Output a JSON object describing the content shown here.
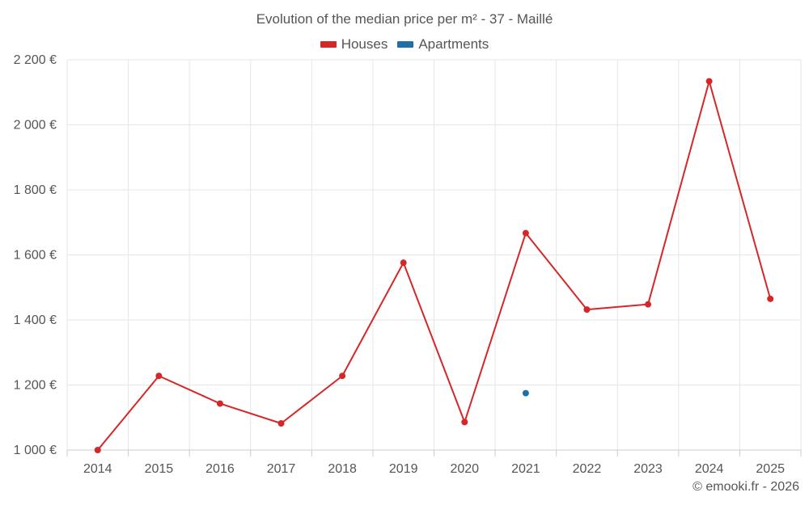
{
  "chart_data": {
    "type": "line",
    "title": "Evolution of the median price per m² - 37 - Maillé",
    "categories": [
      "2014",
      "2015",
      "2016",
      "2017",
      "2018",
      "2019",
      "2020",
      "2021",
      "2022",
      "2023",
      "2024",
      "2025"
    ],
    "series": [
      {
        "name": "Houses",
        "color": "#d62728",
        "values": [
          1000,
          1228,
          1143,
          1082,
          1228,
          1576,
          1086,
          1667,
          1432,
          1448,
          2134,
          1465
        ]
      },
      {
        "name": "Apartments",
        "color": "#1f6fa8",
        "values": [
          null,
          null,
          null,
          null,
          null,
          null,
          null,
          1175,
          null,
          null,
          null,
          null
        ]
      }
    ],
    "ylim": [
      1000,
      2200
    ],
    "yticks": [
      1000,
      1200,
      1400,
      1600,
      1800,
      2000,
      2200
    ],
    "ytick_labels": [
      "1 000 €",
      "1 200 €",
      "1 400 €",
      "1 600 €",
      "1 800 €",
      "2 000 €",
      "2 200 €"
    ],
    "xlabel": "",
    "ylabel": "",
    "grid": true,
    "legend_position": "top-center"
  },
  "credit": "© emooki.fr - 2026"
}
